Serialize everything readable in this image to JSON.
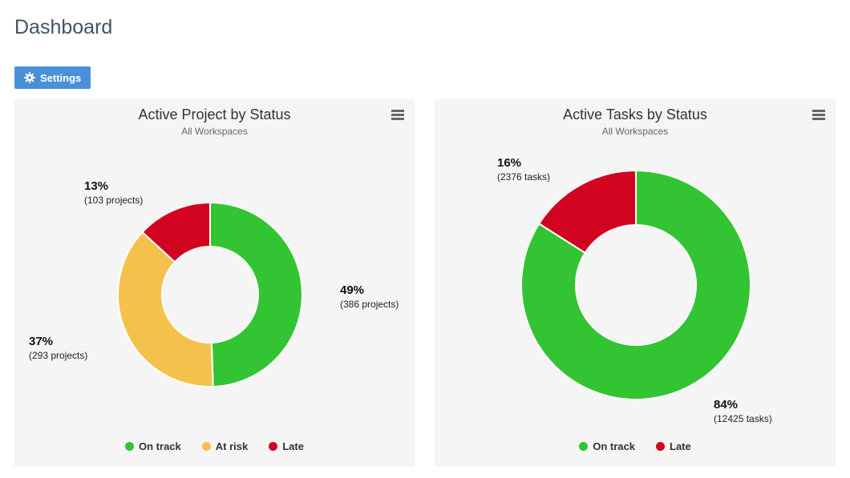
{
  "page": {
    "title": "Dashboard"
  },
  "toolbar": {
    "settings_label": "Settings"
  },
  "colors": {
    "button_blue": "#4a90d9",
    "on_track_green": "#33c433",
    "at_risk_yellow": "#f5c14d",
    "late_red": "#d2031e",
    "card_background": "#f5f5f5"
  },
  "chart_data": [
    {
      "type": "pie",
      "donut": true,
      "title": "Active Project by Status",
      "subtitle": "All Workspaces",
      "legend_position": "bottom",
      "slices": [
        {
          "label": "On track",
          "value": 49,
          "count": 386,
          "unit": "projects",
          "color": "#33c433",
          "callout_pct": "49%",
          "callout_detail": "(386 projects)"
        },
        {
          "label": "At risk",
          "value": 37,
          "count": 293,
          "unit": "projects",
          "color": "#f5c14d",
          "callout_pct": "37%",
          "callout_detail": "(293 projects)"
        },
        {
          "label": "Late",
          "value": 13,
          "count": 103,
          "unit": "projects",
          "color": "#d2031e",
          "callout_pct": "13%",
          "callout_detail": "(103 projects)"
        }
      ]
    },
    {
      "type": "pie",
      "donut": true,
      "title": "Active Tasks by Status",
      "subtitle": "All Workspaces",
      "legend_position": "bottom",
      "slices": [
        {
          "label": "On track",
          "value": 84,
          "count": 12425,
          "unit": "tasks",
          "color": "#33c433",
          "callout_pct": "84%",
          "callout_detail": "(12425 tasks)"
        },
        {
          "label": "Late",
          "value": 16,
          "count": 2376,
          "unit": "tasks",
          "color": "#d2031e",
          "callout_pct": "16%",
          "callout_detail": "(2376 tasks)"
        }
      ]
    }
  ]
}
